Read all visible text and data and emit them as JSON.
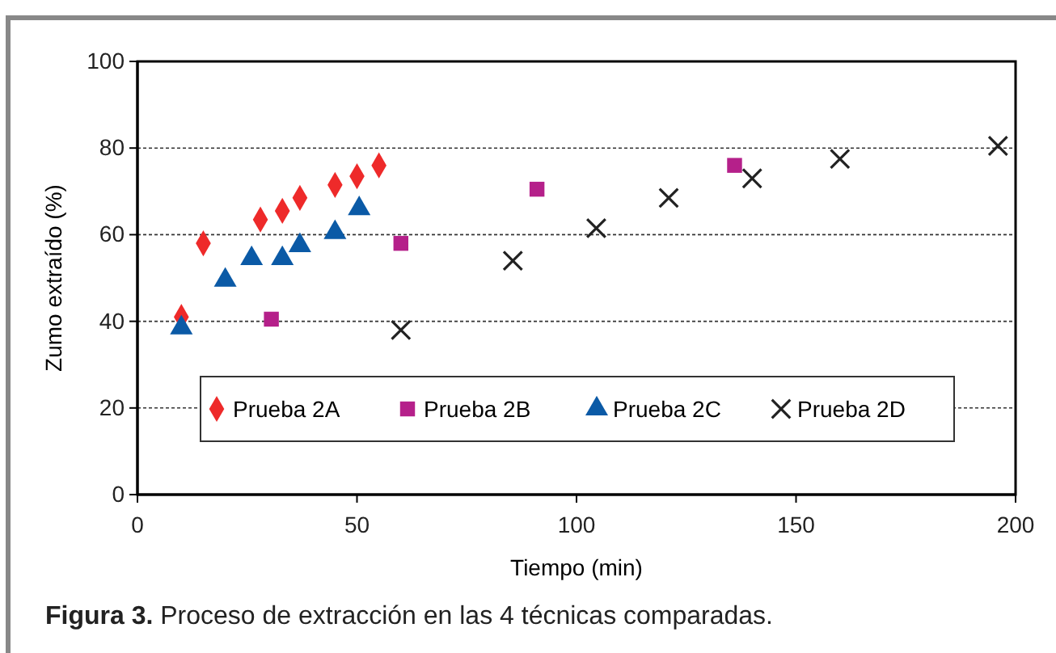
{
  "chart_data": {
    "type": "scatter",
    "xlabel": "Tiempo (min)",
    "ylabel": "Zumo extraído (%)",
    "xlim": [
      0,
      200
    ],
    "ylim": [
      0,
      100
    ],
    "xticks": [
      0,
      50,
      100,
      150,
      200
    ],
    "yticks": [
      0,
      20,
      40,
      60,
      80,
      100
    ],
    "grid": "y",
    "legend": "bottom",
    "annotations": [
      "Figura 3. Proceso de extracción en las 4 técnicas comparadas."
    ],
    "series": [
      {
        "name": "Prueba 2A",
        "color": "#ee2a2a",
        "marker": "diamond",
        "x": [
          10,
          15,
          28,
          33,
          37,
          45,
          50,
          55
        ],
        "values": [
          41,
          58,
          63.5,
          65.5,
          68.5,
          71.5,
          73.5,
          76
        ]
      },
      {
        "name": "Prueba 2B",
        "color": "#b5208a",
        "marker": "square",
        "x": [
          30.5,
          60,
          91,
          136
        ],
        "values": [
          40.5,
          58,
          70.5,
          76
        ]
      },
      {
        "name": "Prueba 2C",
        "color": "#0b5aa6",
        "marker": "triangle",
        "x": [
          10,
          20,
          26,
          33,
          37,
          45,
          50.5
        ],
        "values": [
          38.5,
          49.5,
          54.5,
          54.5,
          57.5,
          60.5,
          66
        ]
      },
      {
        "name": "Prueba 2D",
        "color": "#222222",
        "marker": "cross",
        "x": [
          60,
          85.5,
          104.5,
          121,
          140,
          160,
          196
        ],
        "values": [
          38,
          54,
          61.5,
          68.5,
          73,
          77.5,
          80.5
        ]
      }
    ]
  }
}
